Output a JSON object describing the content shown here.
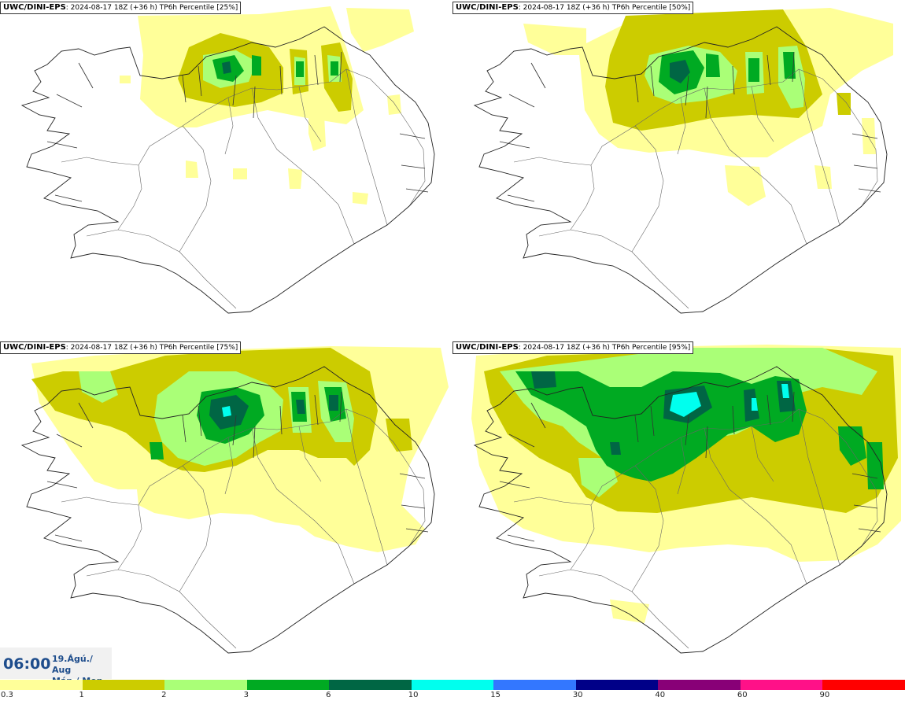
{
  "panels": [
    {
      "model": "UWC/DINI-EPS",
      "run_info": ": 2024-08-17 18Z (+36 h)",
      "variable": "TP6h Percentile",
      "percentile": "[25%]"
    },
    {
      "model": "UWC/DINI-EPS",
      "run_info": ": 2024-08-17 18Z (+36 h)",
      "variable": "TP6h Percentile",
      "percentile": "[50%]"
    },
    {
      "model": "UWC/DINI-EPS",
      "run_info": ": 2024-08-17 18Z (+36 h)",
      "variable": "TP6h Percentile",
      "percentile": "[75%]"
    },
    {
      "model": "UWC/DINI-EPS",
      "run_info": ": 2024-08-17 18Z (+36 h)",
      "variable": "TP6h Percentile",
      "percentile": "[95%]"
    }
  ],
  "valid_time": {
    "time": "06:00",
    "date_line1": "19.Ágú./ Aug",
    "date_line2": "Mán./ Mon"
  },
  "colorbar": {
    "ticks": [
      "0.3",
      "1",
      "2",
      "3",
      "6",
      "10",
      "15",
      "30",
      "40",
      "60",
      "90"
    ],
    "colors": [
      "#ffff99",
      "#cccc00",
      "#aaff77",
      "#00aa22",
      "#006644",
      "#00ffee",
      "#3377ff",
      "#000088",
      "#880077",
      "#ff1188",
      "#ff0000"
    ]
  },
  "palette": {
    "l1": "#ffff99",
    "l2": "#cccc00",
    "l3": "#aaff77",
    "l4": "#00aa22",
    "l5": "#006644",
    "l6": "#00ffee"
  }
}
